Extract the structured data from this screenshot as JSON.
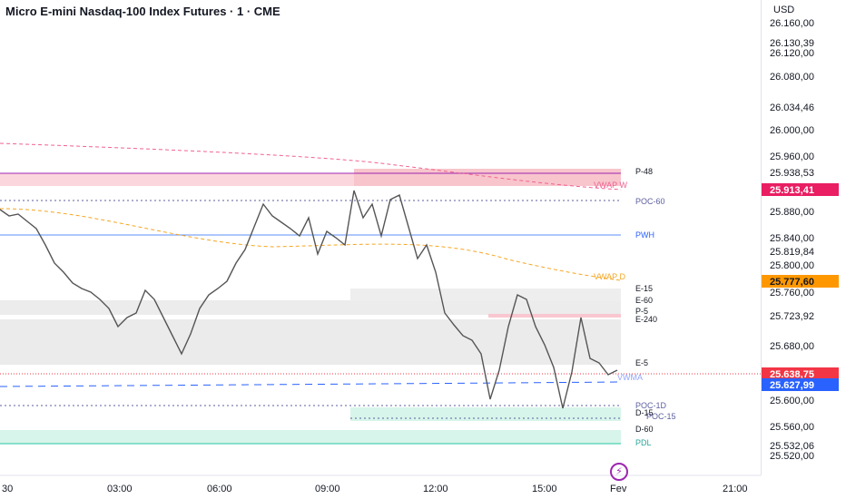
{
  "header": {
    "title": "Micro E-mini Nasdaq-100 Index Futures · 1 · CME",
    "currency": "USD"
  },
  "colors": {
    "price_line": "#555555",
    "pink_zone": "#f8c5cc",
    "grey_zone": "#e6e6e6",
    "green_zone": "#d4f5e9",
    "pwh_line": "#5b8ff9",
    "vwap_d": "#f5a623",
    "vwap_w": "#f06292",
    "poc_line": "#5d5fa0",
    "last_price_tag": "#f23645",
    "vwap_w_tag": "#e91e63",
    "vwap_d_tag": "#ff9800",
    "vwma_tag": "#2962ff",
    "pdl_line": "#26c6a0"
  },
  "time_axis": [
    "30",
    "03:00",
    "06:00",
    "09:00",
    "12:00",
    "15:00",
    "Fev",
    "21:00"
  ],
  "price_axis": [
    "26.160,00",
    "26.130,39",
    "26.120,00",
    "26.080,00",
    "26.034,46",
    "26.000,00",
    "25.960,00",
    "25.938,53",
    "25.880,00",
    "25.840,00",
    "25.819,84",
    "25.800,00",
    "25.760,00",
    "25.723,92",
    "25.680,00",
    "25.600,00",
    "25.560,00",
    "25.532,06",
    "25.520,00"
  ],
  "price_tags": {
    "vwap_w": "25.913,41",
    "vwap_d": "25.777,60",
    "last": "25.638,75",
    "vwma": "25.627,99"
  },
  "level_labels": [
    "P-48",
    "PWH",
    "VWAP W",
    "POC-60",
    "PWH",
    "VWAP D",
    "E-15",
    "E-60",
    "P-5",
    "E-240",
    "E-5",
    "VWMA",
    "POC-1D",
    "D-15",
    "POC-15",
    "D-60",
    "PDL"
  ],
  "price_path": [
    [
      0,
      231
    ],
    [
      10,
      238
    ],
    [
      20,
      236
    ],
    [
      30,
      244
    ],
    [
      40,
      252
    ],
    [
      50,
      270
    ],
    [
      60,
      290
    ],
    [
      70,
      300
    ],
    [
      80,
      312
    ],
    [
      90,
      318
    ],
    [
      100,
      322
    ],
    [
      110,
      330
    ],
    [
      120,
      340
    ],
    [
      130,
      360
    ],
    [
      140,
      350
    ],
    [
      150,
      345
    ],
    [
      160,
      320
    ],
    [
      170,
      330
    ],
    [
      180,
      350
    ],
    [
      190,
      370
    ],
    [
      200,
      390
    ],
    [
      210,
      368
    ],
    [
      220,
      340
    ],
    [
      230,
      325
    ],
    [
      240,
      318
    ],
    [
      250,
      310
    ],
    [
      260,
      290
    ],
    [
      270,
      275
    ],
    [
      280,
      250
    ],
    [
      290,
      225
    ],
    [
      300,
      238
    ],
    [
      310,
      245
    ],
    [
      320,
      252
    ],
    [
      330,
      260
    ],
    [
      340,
      240
    ],
    [
      350,
      280
    ],
    [
      360,
      255
    ],
    [
      370,
      262
    ],
    [
      380,
      270
    ],
    [
      390,
      210
    ],
    [
      400,
      240
    ],
    [
      410,
      225
    ],
    [
      420,
      260
    ],
    [
      430,
      220
    ],
    [
      440,
      215
    ],
    [
      450,
      250
    ],
    [
      460,
      285
    ],
    [
      470,
      270
    ],
    [
      480,
      300
    ],
    [
      490,
      345
    ],
    [
      500,
      358
    ],
    [
      510,
      370
    ],
    [
      520,
      375
    ],
    [
      530,
      390
    ],
    [
      540,
      440
    ],
    [
      550,
      408
    ],
    [
      560,
      360
    ],
    [
      570,
      325
    ],
    [
      580,
      330
    ],
    [
      590,
      360
    ],
    [
      600,
      380
    ],
    [
      610,
      405
    ],
    [
      620,
      450
    ],
    [
      630,
      410
    ],
    [
      640,
      350
    ],
    [
      650,
      395
    ],
    [
      660,
      400
    ],
    [
      670,
      413
    ],
    [
      680,
      408
    ]
  ]
}
